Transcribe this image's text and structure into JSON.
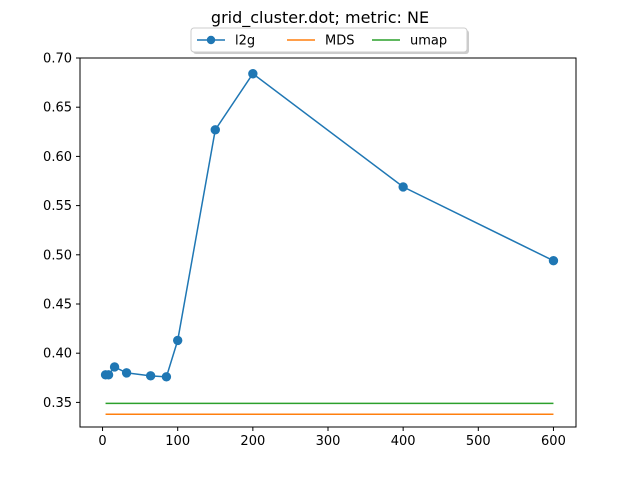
{
  "chart_data": {
    "type": "line",
    "title": "grid_cluster.dot; metric: NE",
    "xlabel": "",
    "ylabel": "",
    "xlim": [
      -30,
      630
    ],
    "ylim": [
      0.325,
      0.7
    ],
    "xticks": [
      0,
      100,
      200,
      300,
      400,
      500,
      600
    ],
    "xtick_labels": [
      "0",
      "100",
      "200",
      "300",
      "400",
      "500",
      "600"
    ],
    "yticks": [
      0.35,
      0.4,
      0.45,
      0.5,
      0.55,
      0.6,
      0.65,
      0.7
    ],
    "ytick_labels": [
      "0.35",
      "0.40",
      "0.45",
      "0.50",
      "0.55",
      "0.60",
      "0.65",
      "0.70"
    ],
    "grid": false,
    "legend_position": "top-center",
    "series": [
      {
        "name": "l2g",
        "color": "#1f77b4",
        "marker": "circle",
        "x": [
          4,
          8,
          16,
          32,
          64,
          85,
          100,
          150,
          200,
          400,
          600
        ],
        "y": [
          0.378,
          0.378,
          0.386,
          0.38,
          0.377,
          0.376,
          0.413,
          0.627,
          0.684,
          0.569,
          0.494
        ]
      },
      {
        "name": "MDS",
        "color": "#ff7f0e",
        "marker": "none",
        "x": [
          4,
          600
        ],
        "y": [
          0.338,
          0.338
        ]
      },
      {
        "name": "umap",
        "color": "#2ca02c",
        "marker": "none",
        "x": [
          4,
          600
        ],
        "y": [
          0.349,
          0.349
        ]
      }
    ]
  }
}
